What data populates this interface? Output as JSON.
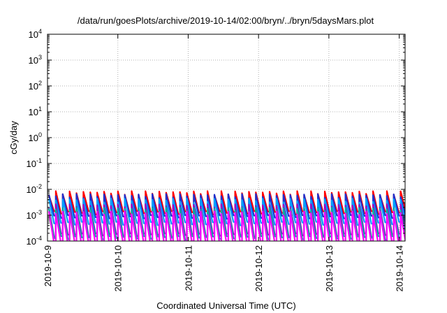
{
  "chart_data": {
    "type": "line",
    "title": "/data/run/goesPlots/archive/2019-10-14/02:00/bryn/../bryn/5daysMars.plot",
    "xlabel": "Coordinated Universal Time (UTC)",
    "ylabel": "cGy/day",
    "x_tick_labels": [
      "2019-10-9",
      "2019-10-10",
      "2019-10-11",
      "2019-10-12",
      "2019-10-13",
      "2019-10-14"
    ],
    "xlim": [
      "2019-10-09",
      "2019-10-14T02:00"
    ],
    "y_scale": "log",
    "ylim": [
      0.0001,
      10000
    ],
    "y_ticks": [
      {
        "base": "10",
        "exp": "-4"
      },
      {
        "base": "10",
        "exp": "-3"
      },
      {
        "base": "10",
        "exp": "-2"
      },
      {
        "base": "10",
        "exp": "-1"
      },
      {
        "base": "10",
        "exp": "0"
      },
      {
        "base": "10",
        "exp": "1"
      },
      {
        "base": "10",
        "exp": "2"
      },
      {
        "base": "10",
        "exp": "3"
      },
      {
        "base": "10",
        "exp": "4"
      }
    ],
    "grid": true,
    "legend": "none",
    "pattern": {
      "cycles_per_day": 10.2,
      "ramp_fraction": 0.75
    },
    "series": [
      {
        "color": "#ff0000",
        "peak": 0.0078,
        "trough": 0.0013
      },
      {
        "color": "#2030cc",
        "peak": 0.006,
        "trough": 0.0009
      },
      {
        "color": "#00a0ff",
        "peak": 0.004,
        "trough": 0.0005
      },
      {
        "color": "#a000c0",
        "peak": 0.0024,
        "trough": 0.00018
      },
      {
        "color": "#00b0a0",
        "peak": 0.0018,
        "trough": 0.00014
      },
      {
        "color": "#ff00ff",
        "peak": 0.0013,
        "trough": 8e-05
      }
    ]
  }
}
